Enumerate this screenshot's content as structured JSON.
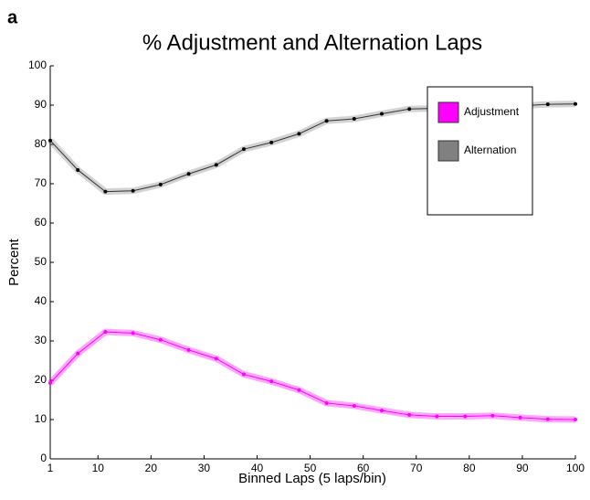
{
  "chart_data": {
    "type": "line",
    "panel_label": "a",
    "title": "% Adjustment and Alternation Laps",
    "x_label": "Binned Laps (5 laps/bin)",
    "y_label": "Percent",
    "x": [
      1,
      6.2,
      11.4,
      16.6,
      21.8,
      27.1,
      32.3,
      37.5,
      42.7,
      47.9,
      53.1,
      58.3,
      63.5,
      68.7,
      73.9,
      79.2,
      84.4,
      89.6,
      94.8,
      100
    ],
    "series": [
      {
        "name": "Adjustment",
        "color": "#ff00ff",
        "values": [
          19.3,
          26.8,
          32.3,
          32,
          30.3,
          27.7,
          25.5,
          21.5,
          19.7,
          17.5,
          14.2,
          13.5,
          12.3,
          11.2,
          10.8,
          10.8,
          11,
          10.5,
          10.1,
          10
        ]
      },
      {
        "name": "Alternation",
        "color": "#808080",
        "values": [
          81,
          73.5,
          68,
          68.2,
          69.8,
          72.5,
          74.8,
          78.8,
          80.5,
          82.7,
          86,
          86.5,
          87.8,
          89,
          89.2,
          89.3,
          89.5,
          89.8,
          90.2,
          90.3
        ]
      }
    ],
    "xlim": [
      1,
      100
    ],
    "xticks": [
      1,
      10,
      20,
      30,
      40,
      50,
      60,
      70,
      80,
      90,
      100
    ],
    "ylim": [
      0,
      100
    ],
    "yticks": [
      0,
      10,
      20,
      30,
      40,
      50,
      60,
      70,
      80,
      90,
      100
    ],
    "legend": "upper right"
  }
}
